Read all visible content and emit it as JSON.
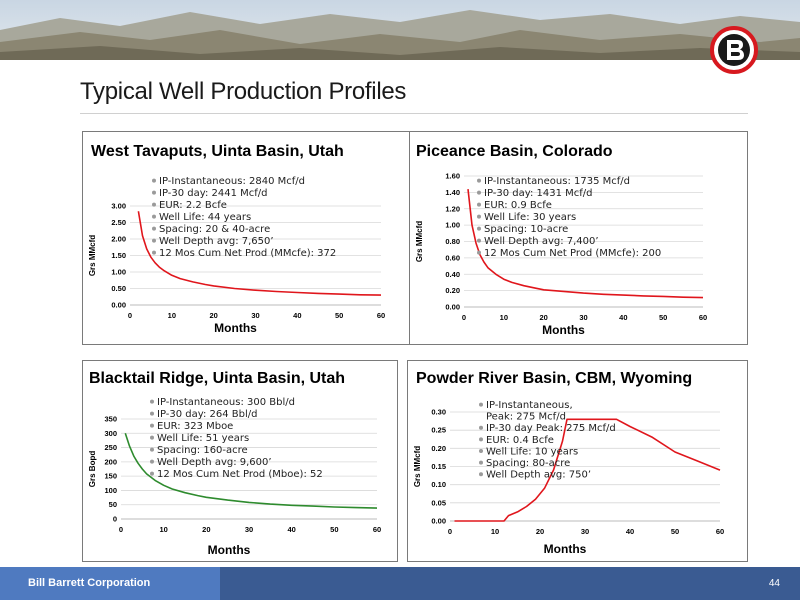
{
  "page": {
    "title": "Typical Well Production Profiles"
  },
  "footer": {
    "company": "Bill Barrett Corporation",
    "page_number": "44"
  },
  "colors": {
    "red_curve": "#e0161c",
    "green_curve": "#2e8b2e",
    "footer_dark": "#3a5b92",
    "footer_light": "#4f7ac0",
    "logo_red": "#d7191f"
  },
  "chart_data": [
    {
      "type": "line",
      "title": "West Tavaputs, Uinta Basin, Utah",
      "xlabel": "Months",
      "ylabel": "Grs MMcfd",
      "xlim": [
        0,
        60
      ],
      "ylim": [
        0,
        3.0
      ],
      "xticks": [
        "0",
        "10",
        "20",
        "30",
        "40",
        "50",
        "60"
      ],
      "yticks": [
        "0.00",
        "0.50",
        "1.00",
        "1.50",
        "2.00",
        "2.50",
        "3.00"
      ],
      "series": [
        {
          "color": "#e0161c",
          "x": [
            2,
            3,
            4,
            5,
            6,
            7,
            8,
            10,
            12,
            15,
            18,
            20,
            25,
            30,
            35,
            40,
            45,
            50,
            55,
            60
          ],
          "y": [
            2.84,
            2.1,
            1.7,
            1.45,
            1.28,
            1.15,
            1.05,
            0.9,
            0.8,
            0.7,
            0.62,
            0.58,
            0.5,
            0.45,
            0.41,
            0.38,
            0.35,
            0.33,
            0.31,
            0.3
          ]
        }
      ],
      "bullets": [
        "IP-Instantaneous: 2840 Mcf/d",
        "IP-30 day: 2441 Mcf/d",
        "EUR: 2.2 Bcfe",
        "Well Life: 44 years",
        "Spacing: 20 & 40-acre",
        "Well Depth avg: 7,650’",
        "12 Mos Cum Net Prod (MMcfe): 372"
      ]
    },
    {
      "type": "line",
      "title": "Piceance Basin, Colorado",
      "xlabel": "Months",
      "ylabel": "Grs MMcfd",
      "xlim": [
        0,
        60
      ],
      "ylim": [
        0,
        1.6
      ],
      "xticks": [
        "0",
        "10",
        "20",
        "30",
        "40",
        "50",
        "60"
      ],
      "yticks": [
        "0.00",
        "0.20",
        "0.40",
        "0.60",
        "0.80",
        "1.00",
        "1.20",
        "1.40",
        "1.60"
      ],
      "series": [
        {
          "color": "#e0161c",
          "x": [
            1,
            2,
            3,
            4,
            5,
            6,
            8,
            10,
            12,
            15,
            18,
            20,
            25,
            30,
            35,
            40,
            45,
            50,
            55,
            60
          ],
          "y": [
            1.44,
            1.0,
            0.78,
            0.64,
            0.55,
            0.48,
            0.4,
            0.34,
            0.3,
            0.26,
            0.23,
            0.21,
            0.19,
            0.17,
            0.155,
            0.145,
            0.135,
            0.13,
            0.12,
            0.115
          ]
        }
      ],
      "bullets": [
        "IP-Instantaneous: 1735 Mcf/d",
        "IP-30 day: 1431 Mcf/d",
        "EUR: 0.9 Bcfe",
        "Well Life: 30 years",
        "Spacing: 10-acre",
        "Well Depth avg: 7,400’",
        "12 Mos Cum Net Prod (MMcfe): 200"
      ]
    },
    {
      "type": "line",
      "title": "Blacktail Ridge, Uinta Basin, Utah",
      "xlabel": "Months",
      "ylabel": "Grs Bopd",
      "xlim": [
        0,
        60
      ],
      "ylim": [
        0,
        350
      ],
      "xticks": [
        "0",
        "10",
        "20",
        "30",
        "40",
        "50",
        "60"
      ],
      "yticks": [
        "0",
        "50",
        "100",
        "150",
        "200",
        "250",
        "300",
        "350"
      ],
      "series": [
        {
          "color": "#2e8b2e",
          "x": [
            1,
            2,
            3,
            4,
            5,
            6,
            8,
            10,
            12,
            15,
            18,
            20,
            25,
            30,
            35,
            40,
            45,
            50,
            55,
            60
          ],
          "y": [
            300,
            255,
            220,
            195,
            175,
            158,
            135,
            118,
            105,
            92,
            82,
            76,
            66,
            58,
            52,
            48,
            45,
            42,
            40,
            38
          ]
        }
      ],
      "bullets": [
        "IP-Instantaneous: 300 Bbl/d",
        "IP-30 day: 264 Bbl/d",
        "EUR: 323 Mboe",
        "Well Life: 51 years",
        "Spacing: 160-acre",
        "Well Depth avg: 9,600’",
        "12 Mos Cum Net Prod (Mboe): 52"
      ]
    },
    {
      "type": "line",
      "title": "Powder River Basin, CBM, Wyoming",
      "xlabel": "Months",
      "ylabel": "Grs MMcfd",
      "xlim": [
        0,
        60
      ],
      "ylim": [
        0,
        0.3
      ],
      "xticks": [
        "0",
        "10",
        "20",
        "30",
        "40",
        "50",
        "60"
      ],
      "yticks": [
        "0.00",
        "0.05",
        "0.10",
        "0.15",
        "0.20",
        "0.25",
        "0.30"
      ],
      "series": [
        {
          "color": "#e0161c",
          "x": [
            1,
            12,
            13,
            15,
            17,
            19,
            21,
            23,
            25,
            26,
            30,
            35,
            37,
            40,
            45,
            50,
            55,
            60
          ],
          "y": [
            0,
            0,
            0.015,
            0.025,
            0.04,
            0.06,
            0.09,
            0.14,
            0.22,
            0.28,
            0.28,
            0.28,
            0.28,
            0.26,
            0.23,
            0.19,
            0.165,
            0.14
          ]
        }
      ],
      "bullets": [
        "IP-Instantaneous,",
        "Peak: 275 Mcf/d",
        "IP-30 day Peak: 275 Mcf/d",
        "EUR: 0.4 Bcfe",
        "Well Life: 10 years",
        "Spacing: 80-acre",
        "Well Depth avg: 750’"
      ],
      "bullet_continuations": [
        1
      ]
    }
  ]
}
